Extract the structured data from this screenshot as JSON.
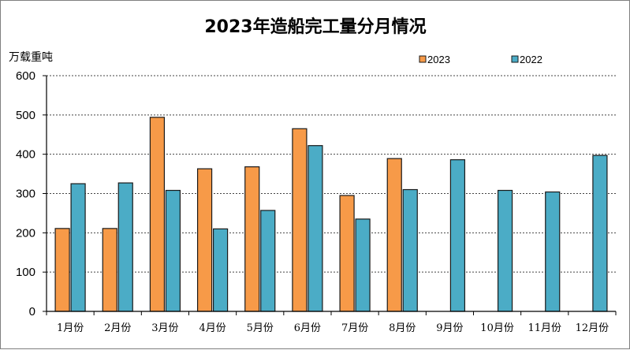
{
  "chart_data": {
    "type": "bar",
    "title": "2023年造船完工量分月情况",
    "ylabel": "万载重吨",
    "xlabel": "",
    "categories": [
      "1月份",
      "2月份",
      "3月份",
      "4月份",
      "5月份",
      "6月份",
      "7月份",
      "8月份",
      "9月份",
      "10月份",
      "11月份",
      "12月份"
    ],
    "series": [
      {
        "name": "2023",
        "color": "#f79a48",
        "values": [
          211,
          211,
          494,
          363,
          368,
          465,
          295,
          389,
          null,
          null,
          null,
          null
        ]
      },
      {
        "name": "2022",
        "color": "#4bacc6",
        "values": [
          325,
          327,
          308,
          210,
          257,
          422,
          235,
          310,
          386,
          308,
          304,
          397
        ]
      }
    ],
    "ylim": [
      0,
      600
    ],
    "yticks": [
      0,
      100,
      200,
      300,
      400,
      500,
      600
    ],
    "grid": true,
    "legend_position": "top"
  }
}
